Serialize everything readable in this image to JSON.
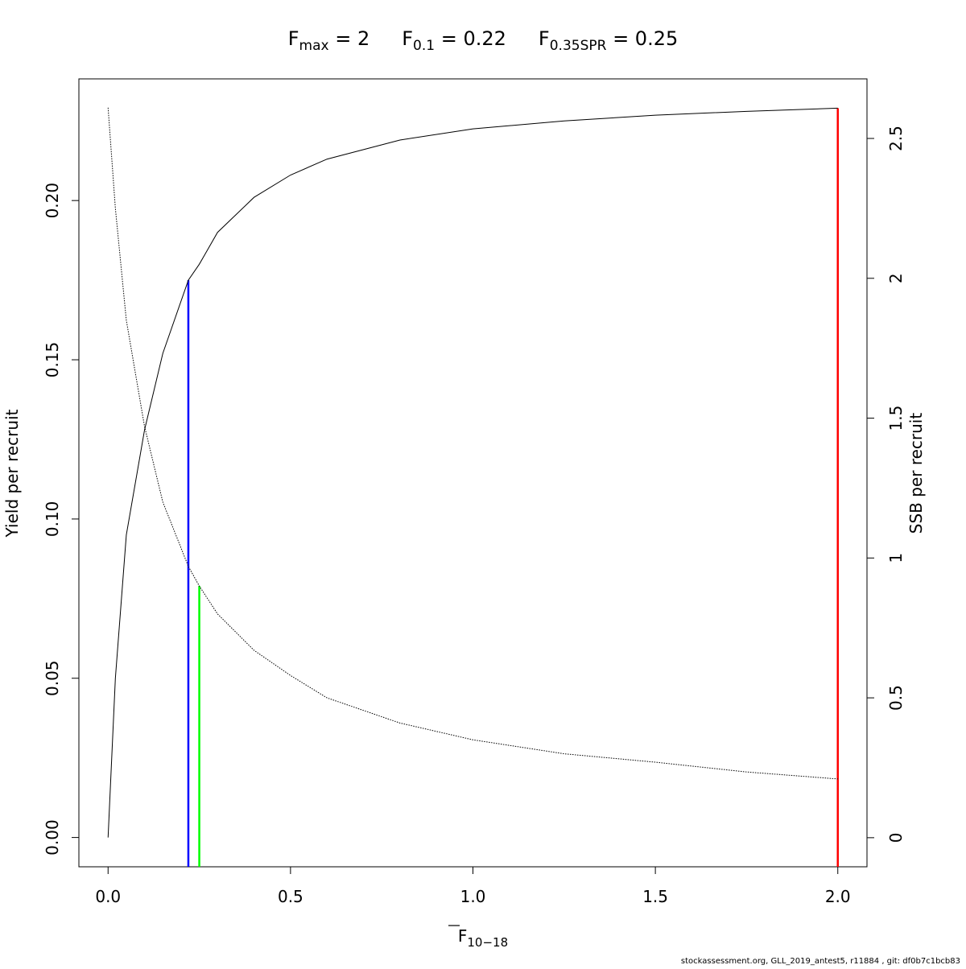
{
  "chart_data": {
    "type": "line",
    "title": [
      {
        "main": "F",
        "sub": "max",
        "rest": " = 2"
      },
      {
        "main": "F",
        "sub": "0.1",
        "rest": " = 0.22"
      },
      {
        "main": "F",
        "sub": "0.35SPR",
        "rest": " = 0.25"
      }
    ],
    "x_label": {
      "main": "F",
      "sub": "10−18"
    },
    "y_label": "Yield per recruit",
    "y2_label": "SSB per recruit",
    "footer": "stockassessment.org, GLL_2019_antest5, r11884 , git: df0b7c1bcb83",
    "x": [
      0,
      0.02,
      0.05,
      0.1,
      0.15,
      0.22,
      0.25,
      0.3,
      0.4,
      0.5,
      0.6,
      0.8,
      1.0,
      1.25,
      1.5,
      1.75,
      2.0
    ],
    "series": [
      {
        "name": "Yield per recruit",
        "color": "#000000",
        "dash": "solid",
        "values": [
          0,
          0.05,
          0.095,
          0.128,
          0.152,
          0.175,
          0.18,
          0.19,
          0.201,
          0.208,
          0.213,
          0.219,
          0.2225,
          0.225,
          0.2268,
          0.228,
          0.229
        ]
      },
      {
        "name": "SSB per recruit",
        "color": "#000000",
        "dash": "dotted",
        "axis": "y2",
        "values": [
          2.61,
          2.25,
          1.85,
          1.47,
          1.2,
          0.97,
          0.9,
          0.8,
          0.67,
          0.58,
          0.5,
          0.41,
          0.35,
          0.3,
          0.27,
          0.235,
          0.21
        ]
      }
    ],
    "reference_lines": [
      {
        "x": 2.0,
        "y": 0.229,
        "color": "#ff0000"
      },
      {
        "x": 0.22,
        "y": 0.175,
        "color": "#0000ff"
      },
      {
        "x": 0.25,
        "y": 0.9,
        "color": "#00ff00",
        "axis": "y2"
      }
    ],
    "xlim": [
      -0.08,
      2.08
    ],
    "xticks": [
      {
        "value": 0,
        "label": "0.0"
      },
      0.5,
      {
        "value": 1,
        "label": "1.0"
      },
      1.5,
      {
        "value": 2,
        "label": "2.0"
      }
    ],
    "ylim": [
      -0.0092,
      0.2382
    ],
    "yticks": [
      {
        "value": 0,
        "label": "0.00"
      },
      0.05,
      {
        "value": 0.1,
        "label": "0.10"
      },
      0.15,
      {
        "value": 0.2,
        "label": "0.20"
      }
    ],
    "y2lim": [
      -0.104,
      2.713
    ],
    "y2ticks": [
      0,
      0.5,
      1,
      1.5,
      2,
      2.5
    ]
  }
}
